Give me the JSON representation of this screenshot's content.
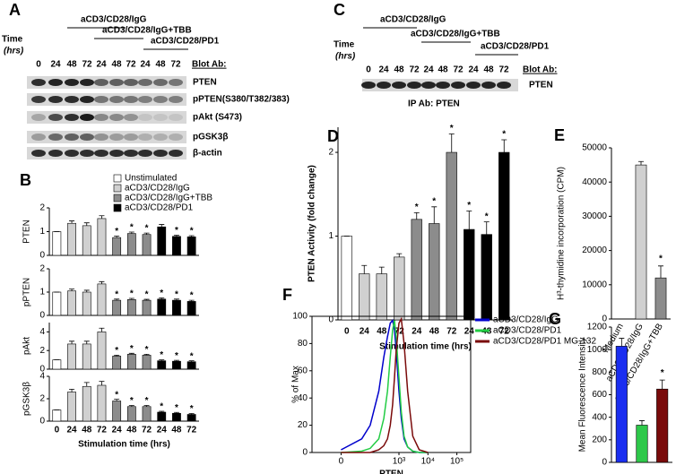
{
  "figure": {
    "blot_a": {
      "label": "A",
      "time_label": "Time",
      "time_unit": "(hrs)",
      "groups": [
        "aCD3/CD28/IgG",
        "aCD3/CD28/IgG+TBB",
        "aCD3/CD28/PD1"
      ],
      "times": [
        "0",
        "24",
        "48",
        "72",
        "24",
        "48",
        "72",
        "24",
        "48",
        "72"
      ],
      "blot_header": "Blot Ab:",
      "rows": [
        "PTEN",
        "pPTEN(S380/T382/383)",
        "pAkt (S473)",
        "pGSK3β",
        "β-actin"
      ]
    },
    "blot_c": {
      "label": "C",
      "time_label": "Time",
      "time_unit": "(hrs)",
      "groups": [
        "aCD3/CD28/IgG",
        "aCD3/CD28/IgG+TBB",
        "aCD3/CD28/PD1"
      ],
      "times": [
        "0",
        "24",
        "48",
        "72",
        "24",
        "48",
        "72",
        "24",
        "48",
        "72"
      ],
      "blot_header": "Blot Ab:",
      "rows": [
        "PTEN"
      ],
      "ip_label": "IP Ab: PTEN"
    }
  },
  "chart_data": [
    {
      "panel": "B",
      "type": "bar",
      "ylabel": "PTEN",
      "ylim": [
        0,
        2
      ],
      "yticks": [
        0,
        1,
        2
      ],
      "series": [
        {
          "name": "Unstimulated",
          "color": "#ffffff",
          "values": [
            1,
            null,
            null,
            null,
            null,
            null,
            null,
            null,
            null,
            null
          ],
          "errors": [
            0,
            null,
            null,
            null,
            null,
            null,
            null,
            null,
            null,
            null
          ]
        },
        {
          "name": "aCD3/CD28/IgG",
          "color": "#d0d0d0",
          "values": [
            null,
            1.35,
            1.25,
            1.55,
            null,
            null,
            null,
            null,
            null,
            null
          ],
          "errors": [
            null,
            0.1,
            0.12,
            0.12,
            null,
            null,
            null,
            null,
            null,
            null
          ]
        },
        {
          "name": "aCD3/CD28/IgG+TBB",
          "color": "#8c8c8c",
          "values": [
            null,
            null,
            null,
            null,
            0.75,
            0.92,
            0.88,
            null,
            null,
            null
          ],
          "errors": [
            null,
            null,
            null,
            null,
            0.06,
            0.06,
            0.06,
            null,
            null,
            null
          ]
        },
        {
          "name": "aCD3/CD28/PD1",
          "color": "#000000",
          "values": [
            null,
            null,
            null,
            null,
            null,
            null,
            null,
            1.2,
            0.8,
            0.78
          ],
          "errors": [
            null,
            null,
            null,
            null,
            null,
            null,
            null,
            0.1,
            0.05,
            0.05
          ]
        }
      ],
      "stars": [
        null,
        null,
        null,
        null,
        "*",
        "*",
        "*",
        null,
        "*",
        "*"
      ]
    },
    {
      "panel": null,
      "type": "bar",
      "ylabel": "pPTEN",
      "ylim": [
        0,
        2
      ],
      "yticks": [
        0,
        1,
        2
      ],
      "series": [
        {
          "color": "#ffffff",
          "values": [
            1,
            null,
            null,
            null,
            null,
            null,
            null,
            null,
            null,
            null
          ],
          "errors": [
            0,
            null,
            null,
            null,
            null,
            null,
            null,
            null,
            null,
            null
          ]
        },
        {
          "color": "#d0d0d0",
          "values": [
            null,
            1.05,
            1.0,
            1.35,
            null,
            null,
            null,
            null,
            null,
            null
          ],
          "errors": [
            null,
            0.08,
            0.08,
            0.1,
            null,
            null,
            null,
            null,
            null,
            null
          ]
        },
        {
          "color": "#8c8c8c",
          "values": [
            null,
            null,
            null,
            null,
            0.65,
            0.68,
            0.65,
            null,
            null,
            null
          ],
          "errors": [
            null,
            null,
            null,
            null,
            0.05,
            0.05,
            0.04,
            null,
            null,
            null
          ]
        },
        {
          "color": "#000000",
          "values": [
            null,
            null,
            null,
            null,
            null,
            null,
            null,
            0.7,
            0.65,
            0.6
          ],
          "errors": [
            null,
            null,
            null,
            null,
            null,
            null,
            null,
            0.05,
            0.05,
            0.05
          ]
        }
      ],
      "stars": [
        null,
        null,
        null,
        null,
        "*",
        "*",
        "*",
        "*",
        "*",
        "*"
      ]
    },
    {
      "panel": null,
      "type": "bar",
      "ylabel": "pAkt",
      "ylim": [
        0,
        5
      ],
      "yticks": [
        0,
        2,
        4
      ],
      "series": [
        {
          "color": "#ffffff",
          "values": [
            1,
            null,
            null,
            null,
            null,
            null,
            null,
            null,
            null,
            null
          ],
          "errors": [
            0,
            null,
            null,
            null,
            null,
            null,
            null,
            null,
            null,
            null
          ]
        },
        {
          "color": "#d0d0d0",
          "values": [
            null,
            2.7,
            2.7,
            4.0,
            null,
            null,
            null,
            null,
            null,
            null
          ],
          "errors": [
            null,
            0.3,
            0.3,
            0.4,
            null,
            null,
            null,
            null,
            null,
            null
          ]
        },
        {
          "color": "#8c8c8c",
          "values": [
            null,
            null,
            null,
            null,
            1.4,
            1.6,
            1.5,
            null,
            null,
            null
          ],
          "errors": [
            null,
            null,
            null,
            null,
            0.1,
            0.1,
            0.1,
            null,
            null,
            null
          ]
        },
        {
          "color": "#000000",
          "values": [
            null,
            null,
            null,
            null,
            null,
            null,
            null,
            0.9,
            0.85,
            0.8
          ],
          "errors": [
            null,
            null,
            null,
            null,
            null,
            null,
            null,
            0.1,
            0.1,
            0.1
          ]
        }
      ],
      "stars": [
        null,
        null,
        null,
        null,
        "*",
        "*",
        "*",
        "*",
        "*",
        "*"
      ]
    },
    {
      "panel": null,
      "type": "bar",
      "ylabel": "pGSK3β",
      "ylim": [
        0,
        4
      ],
      "yticks": [
        0,
        2,
        4
      ],
      "xlabel": "Stimulation time (hrs)",
      "categories": [
        "0",
        "24",
        "48",
        "72",
        "24",
        "48",
        "72",
        "24",
        "48",
        "72"
      ],
      "series": [
        {
          "color": "#ffffff",
          "values": [
            1,
            null,
            null,
            null,
            null,
            null,
            null,
            null,
            null,
            null
          ],
          "errors": [
            0,
            null,
            null,
            null,
            null,
            null,
            null,
            null,
            null,
            null
          ]
        },
        {
          "color": "#d0d0d0",
          "values": [
            null,
            2.6,
            3.1,
            3.2,
            null,
            null,
            null,
            null,
            null,
            null
          ],
          "errors": [
            null,
            0.25,
            0.35,
            0.35,
            null,
            null,
            null,
            null,
            null,
            null
          ]
        },
        {
          "color": "#8c8c8c",
          "values": [
            null,
            null,
            null,
            null,
            1.8,
            1.3,
            1.3,
            null,
            null,
            null
          ],
          "errors": [
            null,
            null,
            null,
            null,
            0.15,
            0.1,
            0.1,
            null,
            null,
            null
          ]
        },
        {
          "color": "#000000",
          "values": [
            null,
            null,
            null,
            null,
            null,
            null,
            null,
            0.8,
            0.7,
            0.6
          ],
          "errors": [
            null,
            null,
            null,
            null,
            null,
            null,
            null,
            0.08,
            0.08,
            0.08
          ]
        }
      ],
      "stars": [
        null,
        null,
        null,
        null,
        "*",
        "*",
        "*",
        "*",
        "*",
        "*"
      ]
    },
    {
      "panel": "D",
      "type": "bar",
      "ylabel": "PTEN Activity (fold change)",
      "xlabel": "Stimulation time (hrs)",
      "ylim": [
        0,
        2.3
      ],
      "yticks": [
        0,
        1,
        2
      ],
      "categories": [
        "0",
        "24",
        "48",
        "72",
        "24",
        "48",
        "72",
        "24",
        "48",
        "72"
      ],
      "series": [
        {
          "color": "#ffffff",
          "values": [
            1,
            null,
            null,
            null,
            null,
            null,
            null,
            null,
            null,
            null
          ],
          "errors": [
            0,
            null,
            null,
            null,
            null,
            null,
            null,
            null,
            null,
            null
          ]
        },
        {
          "color": "#d0d0d0",
          "values": [
            null,
            0.55,
            0.55,
            0.75,
            null,
            null,
            null,
            null,
            null,
            null
          ],
          "errors": [
            null,
            0.1,
            0.08,
            0.04,
            null,
            null,
            null,
            null,
            null,
            null
          ]
        },
        {
          "color": "#8c8c8c",
          "values": [
            null,
            null,
            null,
            null,
            1.2,
            1.15,
            2.0,
            null,
            null,
            null
          ],
          "errors": [
            null,
            null,
            null,
            null,
            0.08,
            0.2,
            0.22,
            null,
            null,
            null
          ]
        },
        {
          "color": "#000000",
          "values": [
            null,
            null,
            null,
            null,
            null,
            null,
            null,
            1.08,
            1.02,
            2.0
          ],
          "errors": [
            null,
            null,
            null,
            null,
            null,
            null,
            null,
            0.22,
            0.15,
            0.15
          ]
        }
      ],
      "stars": [
        null,
        null,
        null,
        null,
        "*",
        "*",
        "*",
        "*",
        "*",
        "*"
      ]
    },
    {
      "panel": "E",
      "type": "bar",
      "ylabel": "H³-thymidine incorporation (CPM)",
      "ylim": [
        0,
        50000
      ],
      "yticks": [
        0,
        10000,
        20000,
        30000,
        40000,
        50000
      ],
      "categories": [
        "Medium",
        "aCD3/CD28/IgG",
        "aCD3/CD28/IgG+TBB"
      ],
      "values": [
        0,
        45000,
        12000
      ],
      "errors": [
        0,
        1000,
        3500
      ],
      "colors": [
        "#d0d0d0",
        "#d0d0d0",
        "#8c8c8c"
      ],
      "stars": [
        null,
        null,
        "*"
      ]
    },
    {
      "panel": "F",
      "type": "line",
      "xlabel": "PTEN",
      "ylabel": "% of Max",
      "xscale": "biexponential",
      "xlim": [
        -100,
        300000
      ],
      "xticks": [
        0,
        {
          "value": 1000,
          "label": "10³"
        },
        {
          "value": 10000,
          "label": "10⁴"
        },
        {
          "value": 100000,
          "label": "10⁵"
        }
      ],
      "ylim": [
        0,
        100
      ],
      "yticks": [
        0,
        20,
        40,
        60,
        80,
        100
      ],
      "x": [
        0,
        50,
        100,
        200,
        300,
        400,
        500,
        600,
        700,
        800,
        1000,
        1200,
        1500,
        2000,
        3000,
        5000,
        10000
      ],
      "series": [
        {
          "name": "aCD3/CD28/IgG",
          "color": "#0000cc",
          "values": [
            2,
            10,
            20,
            45,
            70,
            85,
            95,
            97,
            90,
            75,
            45,
            25,
            10,
            4,
            1,
            0,
            0
          ]
        },
        {
          "name": "aCD3/CD28/PD1",
          "color": "#22cc44",
          "values": [
            0,
            1,
            3,
            10,
            25,
            45,
            70,
            90,
            97,
            85,
            55,
            30,
            12,
            4,
            1,
            0,
            0
          ]
        },
        {
          "name": "aCD3/CD28/PD1 MG-132",
          "color": "#7a0a0a",
          "values": [
            0,
            0,
            0,
            2,
            5,
            10,
            20,
            35,
            55,
            75,
            95,
            98,
            80,
            45,
            12,
            2,
            0
          ]
        }
      ]
    },
    {
      "panel": "G",
      "type": "bar",
      "ylabel": "Mean Fluorescence Intensity",
      "ylim": [
        0,
        1200
      ],
      "yticks": [
        0,
        200,
        400,
        600,
        800,
        1000,
        1200
      ],
      "categories": [
        null,
        null,
        null
      ],
      "values": [
        1030,
        330,
        650
      ],
      "errors": [
        70,
        40,
        80
      ],
      "colors": [
        "#1a2ef0",
        "#2ec84a",
        "#7a0a0a"
      ],
      "stars": [
        null,
        null,
        "*"
      ]
    }
  ]
}
